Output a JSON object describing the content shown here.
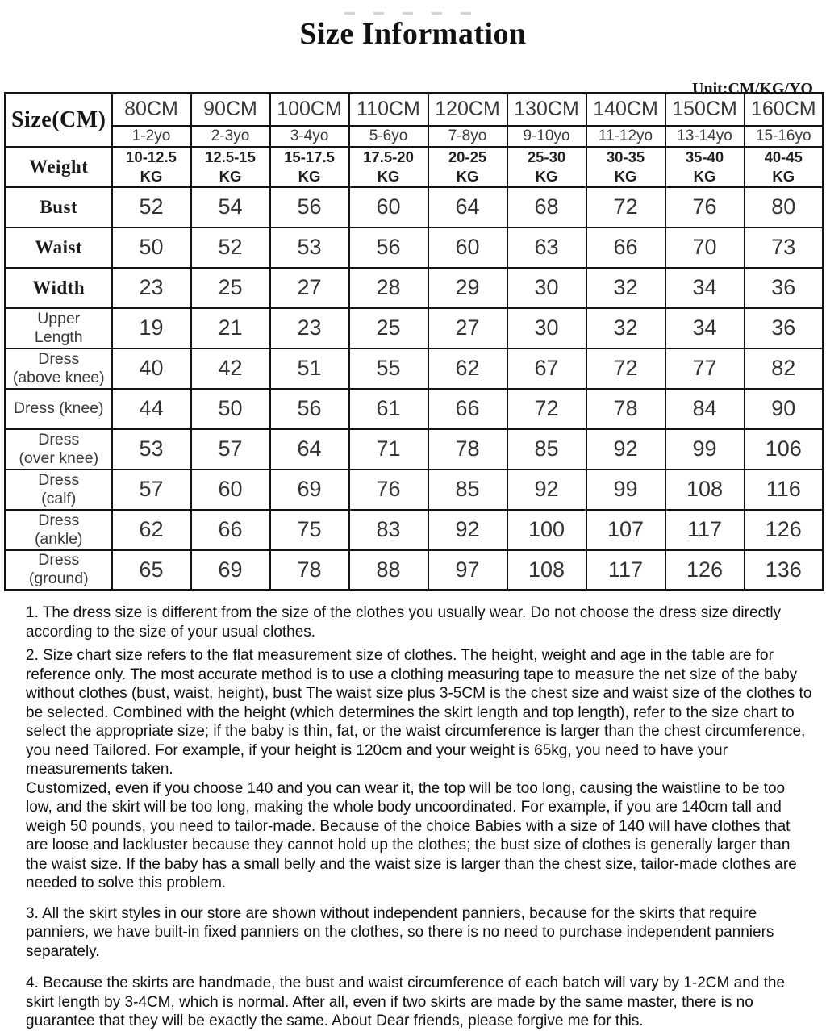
{
  "page": {
    "title": "Size Information",
    "unit_label": "Unit:CM/KG/YO"
  },
  "size_table": {
    "corner_label": "Size(CM)",
    "columns": [
      {
        "size": "80CM",
        "age": "1-2yo"
      },
      {
        "size": "90CM",
        "age": "2-3yo"
      },
      {
        "size": "100CM",
        "age": "3-4yo",
        "underline": true
      },
      {
        "size": "110CM",
        "age": "5-6yo",
        "underline": true
      },
      {
        "size": "120CM",
        "age": "7-8yo"
      },
      {
        "size": "130CM",
        "age": "9-10yo"
      },
      {
        "size": "140CM",
        "age": "11-12yo"
      },
      {
        "size": "150CM",
        "age": "13-14yo"
      },
      {
        "size": "160CM",
        "age": "15-16yo"
      }
    ],
    "rows": [
      {
        "label": "Weight",
        "label_style": "serif",
        "values_bold": true,
        "values": [
          "10-12.5\nKG",
          "12.5-15\nKG",
          "15-17.5\nKG",
          "17.5-20\nKG",
          "20-25\nKG",
          "25-30\nKG",
          "30-35\nKG",
          "35-40\nKG",
          "40-45\nKG"
        ]
      },
      {
        "label": "Bust",
        "label_style": "serif",
        "values": [
          "52",
          "54",
          "56",
          "60",
          "64",
          "68",
          "72",
          "76",
          "80"
        ]
      },
      {
        "label": "Waist",
        "label_style": "serif",
        "values": [
          "50",
          "52",
          "53",
          "56",
          "60",
          "63",
          "66",
          "70",
          "73"
        ]
      },
      {
        "label": "Width",
        "label_style": "serif",
        "values": [
          "23",
          "25",
          "27",
          "28",
          "29",
          "30",
          "32",
          "34",
          "36"
        ]
      },
      {
        "label": "Upper\nLength",
        "label_style": "sans",
        "values": [
          "19",
          "21",
          "23",
          "25",
          "27",
          "30",
          "32",
          "34",
          "36"
        ]
      },
      {
        "label": "Dress\n(above knee)",
        "label_style": "sans",
        "values": [
          "40",
          "42",
          "51",
          "55",
          "62",
          "67",
          "72",
          "77",
          "82"
        ]
      },
      {
        "label": "Dress (knee)",
        "label_style": "sans",
        "values": [
          "44",
          "50",
          "56",
          "61",
          "66",
          "72",
          "78",
          "84",
          "90"
        ]
      },
      {
        "label": "Dress\n(over knee)",
        "label_style": "sans",
        "values": [
          "53",
          "57",
          "64",
          "71",
          "78",
          "85",
          "92",
          "99",
          "106"
        ]
      },
      {
        "label": "Dress\n(calf)",
        "label_style": "sans",
        "values": [
          "57",
          "60",
          "69",
          "76",
          "85",
          "92",
          "99",
          "108",
          "116"
        ]
      },
      {
        "label": "Dress\n(ankle)",
        "label_style": "sans",
        "values": [
          "62",
          "66",
          "75",
          "83",
          "92",
          "100",
          "107",
          "117",
          "126"
        ]
      },
      {
        "label": "Dress\n(ground)",
        "label_style": "sans",
        "values": [
          "65",
          "69",
          "78",
          "88",
          "97",
          "108",
          "117",
          "126",
          "136"
        ]
      }
    ]
  },
  "notes": [
    {
      "text": "1. The dress size is different from the size of the clothes you usually wear. Do not choose the dress size directly according to the size of your usual clothes."
    },
    {
      "text": "2. Size chart size refers to the flat measurement size of clothes. The height, weight and age in the table are for reference only. The most accurate method is to use a clothing measuring tape to measure the net size of the baby without clothes (bust, waist, height), bust The waist size plus 3-5CM is the chest size and waist size of the clothes to be selected. Combined with the height (which determines the skirt length and top length), refer to the size chart to select the appropriate size; if the baby is thin, fat, or the waist circumference is larger than the chest circumference, you need Tailored. For example, if your height is 120cm and your weight is 65kg, you need to have your measurements taken.",
      "text2": "Customized, even if you choose 140 and you can wear it, the top will be too long, causing the waistline to be too low, and the skirt will be too long, making the whole body uncoordinated. For example, if you are 140cm tall and weigh 50 pounds, you need to tailor-made. Because of the choice Babies with a size of 140 will have clothes that are loose and lackluster because they cannot hold up the clothes; the bust size of clothes is generally larger than the waist size. If the baby has a small belly and the waist size is larger than the chest size, tailor-made clothes are needed to solve this problem."
    },
    {
      "text": "3. All the skirt styles in our store are shown without independent panniers, because for the skirts that require panniers, we have built-in fixed panniers on the clothes, so there is no need to purchase independent panniers separately."
    },
    {
      "text": "4. Because the skirts are handmade, the bust and waist circumference of each batch will vary by 1-2CM and the skirt length by 3-4CM, which is normal. After all, even if two skirts are made by the same master, there is no guarantee that they will be exactly the same. About Dear friends, please forgive me for this."
    }
  ]
}
